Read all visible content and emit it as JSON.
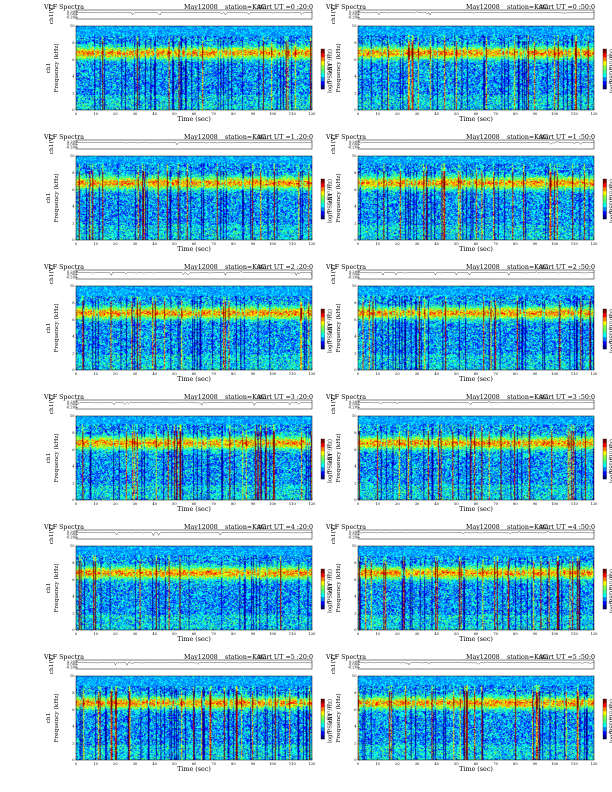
{
  "figure": {
    "title": "VLF Spectra",
    "date": "May12008",
    "station": "station=KAG",
    "start_prefix": "start  UT =",
    "xlabel": "Time  (sec)",
    "ylabel_volts": "ch1(V)",
    "ylabel_freq_top": "ch1",
    "ylabel_freq": "Frequency  (kHz)",
    "colorbar_label": "log(PSD)(V²/Hz)"
  },
  "chart_data": {
    "type": "heatmap",
    "layout": "6 rows x 2 columns of spectrograms",
    "xlim": [
      0,
      120
    ],
    "x_ticks": [
      0,
      10,
      20,
      30,
      40,
      50,
      60,
      70,
      80,
      90,
      100,
      110,
      120
    ],
    "freq_ylim": [
      0,
      10
    ],
    "freq_ticks": [
      0,
      2,
      4,
      6,
      8,
      10
    ],
    "volt_ticks": [
      "0.20",
      "0.00",
      "-0.20"
    ],
    "colorbar_ticks": [
      "-2",
      "-4",
      "-6"
    ],
    "colormap": [
      "#00007f",
      "#0000ff",
      "#0080ff",
      "#00ffff",
      "#40ff80",
      "#80ff40",
      "#ffff00",
      "#ff8000",
      "#ff0000",
      "#7f0000"
    ],
    "panels": [
      {
        "start": "0 :20:0"
      },
      {
        "start": "0 :50:0"
      },
      {
        "start": "1 :20:0"
      },
      {
        "start": "1 :50:0"
      },
      {
        "start": "2 :20:0"
      },
      {
        "start": "2 :50:0"
      },
      {
        "start": "3 :20:0"
      },
      {
        "start": "3 :50:0"
      },
      {
        "start": "4 :20:0"
      },
      {
        "start": "4 :50:0"
      },
      {
        "start": "5 :20:0"
      },
      {
        "start": "5 :50:0"
      }
    ]
  }
}
